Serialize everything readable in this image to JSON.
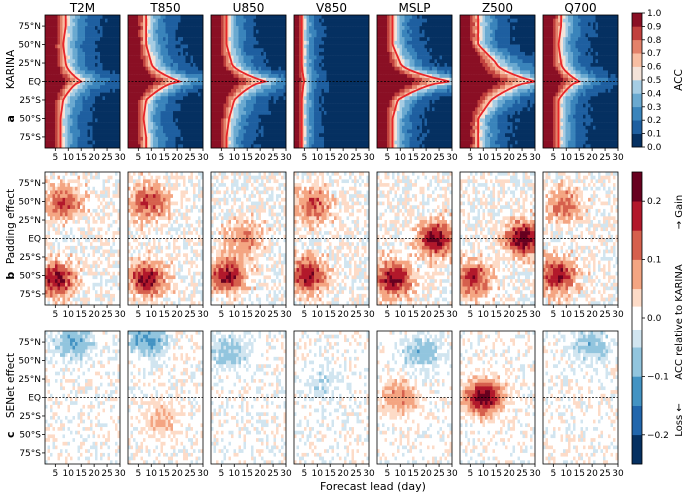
{
  "figure": {
    "variables": [
      "T2M",
      "T850",
      "U850",
      "V850",
      "MSLP",
      "Z500",
      "Q700"
    ],
    "xlabel": "Forecast lead (day)",
    "x_ticks": [
      5,
      10,
      15,
      20,
      25,
      30
    ],
    "y_ticks": [
      "75°N",
      "50°N",
      "25°N",
      "EQ",
      "25°S",
      "50°S",
      "75°S"
    ],
    "rows": [
      {
        "letter": "a",
        "label": "KARINA"
      },
      {
        "letter": "b",
        "label": "Padding effect"
      },
      {
        "letter": "c",
        "label": "SENet effect"
      }
    ],
    "colorbar_top": {
      "label": "ACC",
      "ticks": [
        "1.0",
        "0.9",
        "0.8",
        "0.7",
        "0.6",
        "0.5",
        "0.4",
        "0.3",
        "0.2",
        "0.1",
        "0.0"
      ]
    },
    "colorbar_bottom": {
      "label": "ACC relative to KARINA",
      "ticks": [
        "0.2",
        "0.1",
        "0.0",
        "−0.1",
        "−0.2"
      ],
      "gain_label": "→ Gain",
      "loss_label": "Loss ←"
    }
  },
  "chart_data": [
    {
      "type": "heatmap",
      "row": "a",
      "ylabel": "KARINA",
      "x": "forecast lead (day)",
      "y": "latitude",
      "xlim": [
        1,
        30
      ],
      "ylim": [
        -90,
        90
      ],
      "value_range": [
        0.0,
        1.0
      ],
      "colorbar": "ACC",
      "contour_level": 0.6,
      "panels": [
        {
          "name": "T2M",
          "acc06_lead_days_by_latitude": {
            "75N": 9,
            "50N": 8,
            "25N": 9,
            "EQ": 15,
            "25S": 8,
            "50S": 7,
            "75S": 7
          }
        },
        {
          "name": "T850",
          "acc06_lead_days_by_latitude": {
            "75N": 8,
            "50N": 8,
            "25N": 10,
            "EQ": 21,
            "25S": 8,
            "50S": 7,
            "75S": 8
          }
        },
        {
          "name": "U850",
          "acc06_lead_days_by_latitude": {
            "75N": 7,
            "50N": 7,
            "25N": 9,
            "EQ": 22,
            "25S": 10,
            "50S": 8,
            "75S": 7
          }
        },
        {
          "name": "V850",
          "acc06_lead_days_by_latitude": {
            "75N": 4,
            "50N": 4,
            "25N": 4,
            "EQ": 5,
            "25S": 4,
            "50S": 4,
            "75S": 4
          }
        },
        {
          "name": "MSLP",
          "acc06_lead_days_by_latitude": {
            "75N": 7,
            "50N": 7,
            "25N": 10,
            "EQ": 29,
            "25S": 9,
            "50S": 7,
            "75S": 7
          }
        },
        {
          "name": "Z500",
          "acc06_lead_days_by_latitude": {
            "75N": 8,
            "50N": 8,
            "25N": 15,
            "EQ": 30,
            "25S": 13,
            "50S": 8,
            "75S": 8
          }
        },
        {
          "name": "Q700",
          "acc06_lead_days_by_latitude": {
            "75N": 8,
            "50N": 7,
            "25N": 8,
            "EQ": 15,
            "25S": 7,
            "50S": 7,
            "75S": 7
          }
        }
      ]
    },
    {
      "type": "heatmap",
      "row": "b",
      "ylabel": "Padding effect",
      "x": "forecast lead (day)",
      "y": "latitude",
      "xlim": [
        1,
        30
      ],
      "ylim": [
        -90,
        90
      ],
      "value_range": [
        -0.25,
        0.25
      ],
      "colorbar": "ACC relative to KARINA",
      "panels": [
        {
          "name": "T2M",
          "hotspots": [
            {
              "lat": -55,
              "lead": 5,
              "value": 0.22
            },
            {
              "lat": 50,
              "lead": 8,
              "value": 0.15
            }
          ]
        },
        {
          "name": "T850",
          "hotspots": [
            {
              "lat": -55,
              "lead": 8,
              "value": 0.2
            },
            {
              "lat": 50,
              "lead": 9,
              "value": 0.16
            }
          ]
        },
        {
          "name": "U850",
          "hotspots": [
            {
              "lat": -50,
              "lead": 7,
              "value": 0.2
            },
            {
              "lat": 0,
              "lead": 14,
              "value": 0.1
            }
          ]
        },
        {
          "name": "V850",
          "hotspots": [
            {
              "lat": -50,
              "lead": 6,
              "value": 0.2
            },
            {
              "lat": 45,
              "lead": 8,
              "value": 0.14
            }
          ]
        },
        {
          "name": "MSLP",
          "hotspots": [
            {
              "lat": -55,
              "lead": 7,
              "value": 0.22
            },
            {
              "lat": 0,
              "lead": 24,
              "value": 0.22
            }
          ]
        },
        {
          "name": "Z500",
          "hotspots": [
            {
              "lat": -55,
              "lead": 6,
              "value": 0.18
            },
            {
              "lat": 0,
              "lead": 26,
              "value": 0.25
            }
          ]
        },
        {
          "name": "Q700",
          "hotspots": [
            {
              "lat": -50,
              "lead": 6,
              "value": 0.2
            },
            {
              "lat": 45,
              "lead": 9,
              "value": 0.12
            }
          ]
        }
      ]
    },
    {
      "type": "heatmap",
      "row": "c",
      "ylabel": "SENet effect",
      "x": "forecast lead (day)",
      "y": "latitude",
      "xlim": [
        1,
        30
      ],
      "ylim": [
        -90,
        90
      ],
      "value_range": [
        -0.25,
        0.25
      ],
      "colorbar": "ACC relative to KARINA",
      "panels": [
        {
          "name": "T2M",
          "hotspots": [
            {
              "lat": 75,
              "lead": 12,
              "value": -0.1
            }
          ]
        },
        {
          "name": "T850",
          "hotspots": [
            {
              "lat": 80,
              "lead": 8,
              "value": -0.12
            },
            {
              "lat": -30,
              "lead": 14,
              "value": 0.06
            }
          ]
        },
        {
          "name": "U850",
          "hotspots": [
            {
              "lat": 60,
              "lead": 8,
              "value": -0.08
            }
          ]
        },
        {
          "name": "V850",
          "hotspots": [
            {
              "lat": 20,
              "lead": 12,
              "value": -0.04
            }
          ]
        },
        {
          "name": "MSLP",
          "hotspots": [
            {
              "lat": 0,
              "lead": 10,
              "value": 0.1
            },
            {
              "lat": 60,
              "lead": 18,
              "value": -0.08
            }
          ]
        },
        {
          "name": "Z500",
          "hotspots": [
            {
              "lat": 0,
              "lead": 10,
              "value": 0.24
            }
          ]
        },
        {
          "name": "Q700",
          "hotspots": [
            {
              "lat": 70,
              "lead": 20,
              "value": -0.08
            }
          ]
        }
      ]
    }
  ]
}
